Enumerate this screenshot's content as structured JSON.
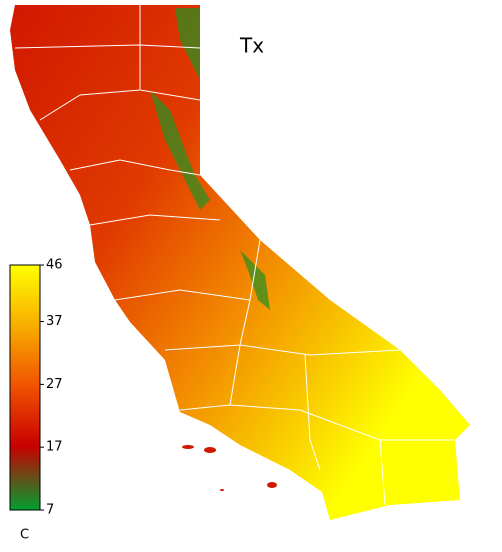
{
  "title": "Tx",
  "colorbar": {
    "unit": "C",
    "lim": [
      7,
      46
    ],
    "ticks": [
      46,
      37,
      27,
      17,
      7
    ]
  }
}
